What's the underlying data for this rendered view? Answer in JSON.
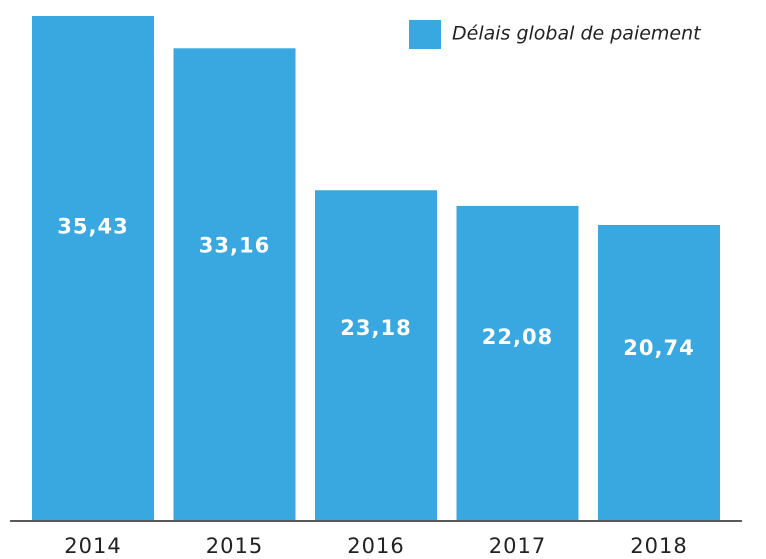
{
  "chart_data": {
    "type": "bar",
    "categories": [
      "2014",
      "2015",
      "2016",
      "2017",
      "2018"
    ],
    "series": [
      {
        "name": "Délais global de paiement",
        "color": "#39a8e0",
        "values": [
          35.43,
          33.16,
          23.18,
          22.08,
          20.74
        ],
        "value_labels": [
          "35,43",
          "33,16",
          "23,18",
          "22,08",
          "20,74"
        ]
      }
    ],
    "legend": "top-right"
  }
}
